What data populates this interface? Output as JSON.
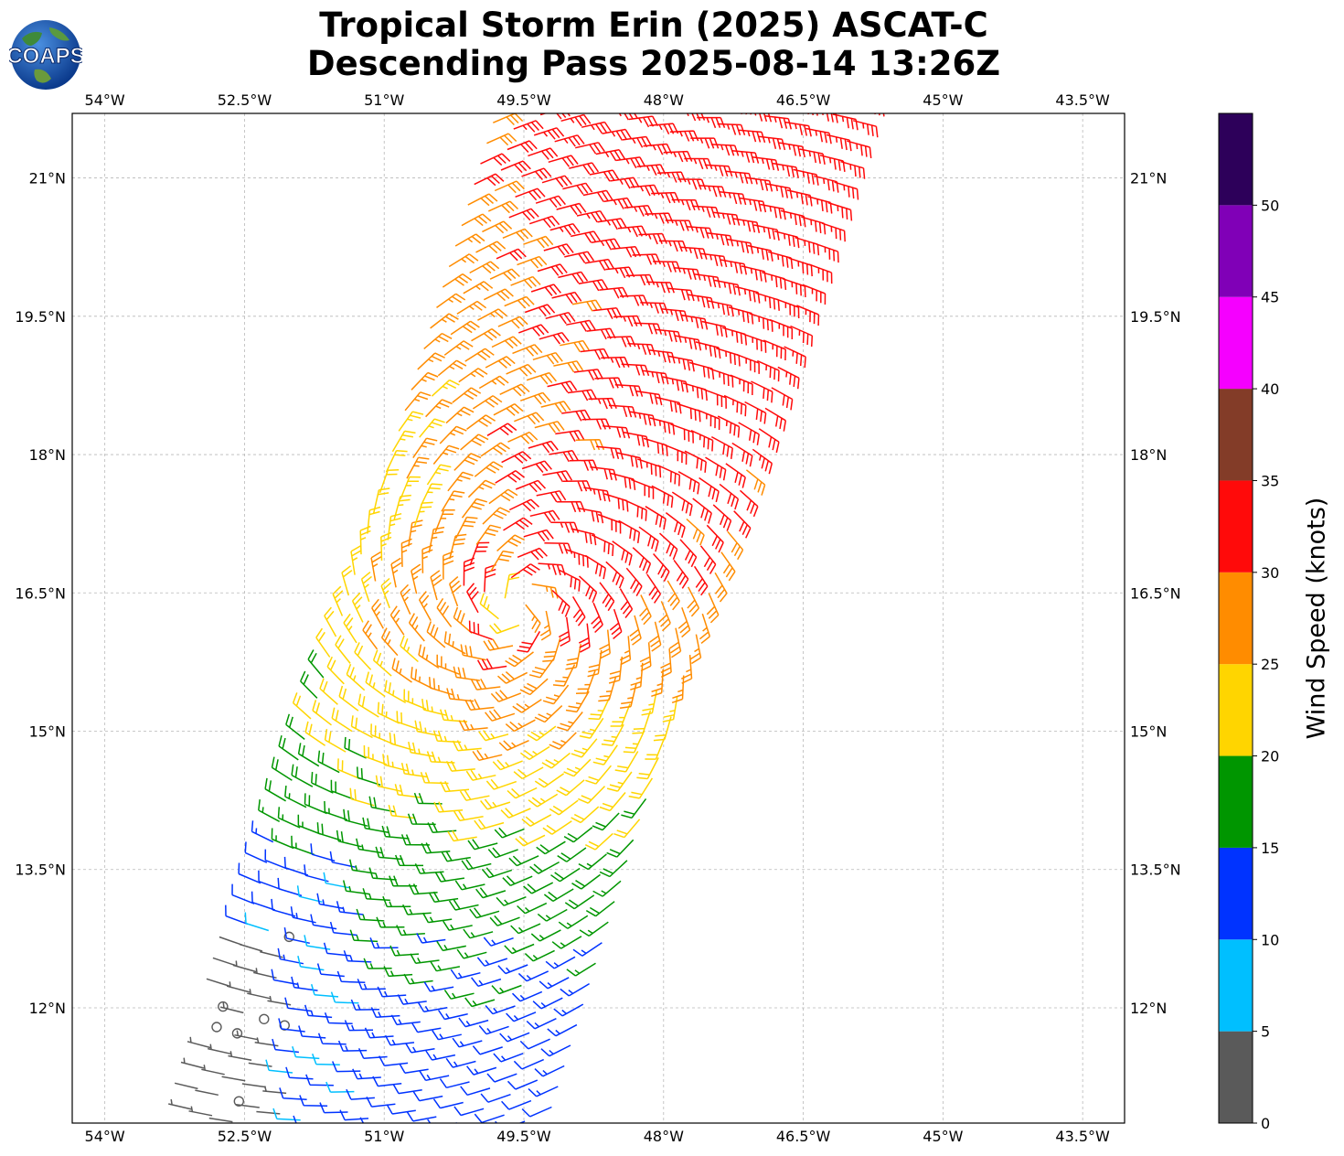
{
  "title_line1": "Tropical Storm Erin (2025) ASCAT-C",
  "title_line2": "Descending Pass 2025-08-14 13:26Z",
  "logo": {
    "text": "COAPS",
    "icon": "globe-icon"
  },
  "map": {
    "lon_range": [
      -54.35,
      -43.05
    ],
    "lat_range": [
      10.75,
      21.7
    ],
    "lon_ticks": [
      "54°W",
      "52.5°W",
      "51°W",
      "49.5°W",
      "48°W",
      "46.5°W",
      "45°W",
      "43.5°W"
    ],
    "lon_values": [
      -54,
      -52.5,
      -51,
      -49.5,
      -48,
      -46.5,
      -45,
      -43.5
    ],
    "lat_ticks": [
      "12°N",
      "13.5°N",
      "15°N",
      "16.5°N",
      "18°N",
      "19.5°N",
      "21°N"
    ],
    "lat_values": [
      12,
      13.5,
      15,
      16.5,
      18,
      19.5,
      21
    ],
    "grid": true,
    "storm_center": {
      "lon": -49.55,
      "lat": 16.35
    }
  },
  "colorbar": {
    "label": "Wind Speed (knots)",
    "tick_labels": [
      "0",
      "5",
      "10",
      "15",
      "20",
      "25",
      "30",
      "35",
      "40",
      "45",
      "50"
    ],
    "bounds": [
      0,
      5,
      10,
      15,
      20,
      25,
      30,
      35,
      40,
      45,
      50,
      55
    ],
    "colors": [
      "#5a5a5a",
      "#00bfff",
      "#0033ff",
      "#009600",
      "#ffd500",
      "#ff8c00",
      "#ff0a0a",
      "#833c28",
      "#f500ff",
      "#8000b7",
      "#2d005a"
    ]
  }
}
